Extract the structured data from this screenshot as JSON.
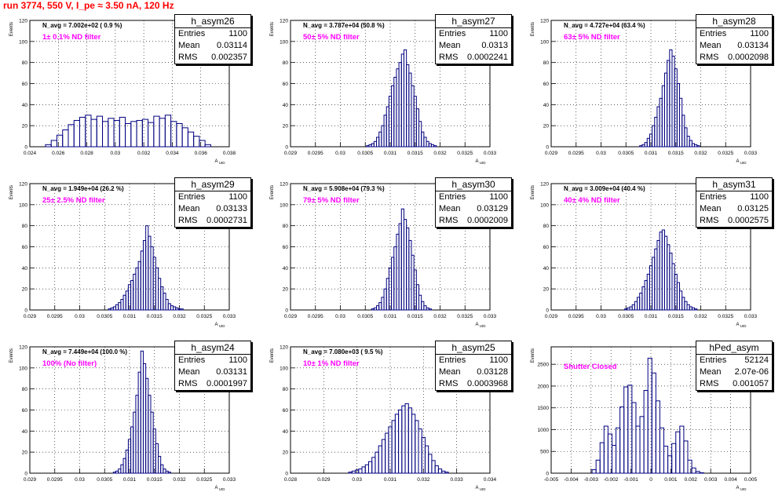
{
  "page_title": "run 3774,   550 V, I_pe ≈ 3.50 nA, 120 Hz",
  "stats_labels": {
    "entries": "Entries",
    "mean": "Mean",
    "rms": "RMS"
  },
  "ylabel": "Events",
  "xlabel": "A_UID",
  "colors": {
    "title": "#ff0000",
    "hist": "#000080",
    "annotation": "#ff00ff",
    "grid": "#000000"
  },
  "chart_data": [
    {
      "type": "histogram",
      "name": "h_asym26",
      "nlabel": "N_avg = 7.002e+02 ( 0.9 %)",
      "filter": "1± 0.1% ND filter",
      "entries": "1100",
      "mean": "0.03114",
      "rms": "0.002357",
      "xlim": [
        0.024,
        0.038
      ],
      "ylim": [
        0,
        120
      ],
      "xticks": [
        "0.024",
        "0.026",
        "0.028",
        "0.03",
        "0.032",
        "0.034",
        "0.036",
        "0.038"
      ],
      "yticks": [
        "0",
        "20",
        "40",
        "60",
        "80",
        "100",
        "120"
      ],
      "x": [
        0.0253,
        0.0257,
        0.0261,
        0.0265,
        0.0269,
        0.0273,
        0.0277,
        0.0281,
        0.0285,
        0.0289,
        0.0293,
        0.0297,
        0.0301,
        0.0305,
        0.0309,
        0.0313,
        0.0317,
        0.0321,
        0.0325,
        0.0329,
        0.0333,
        0.0337,
        0.0341,
        0.0345,
        0.0349,
        0.0353,
        0.0357,
        0.0361,
        0.0365
      ],
      "values": [
        2,
        6,
        11,
        16,
        21,
        25,
        28,
        30,
        26,
        29,
        24,
        27,
        25,
        28,
        22,
        24,
        25,
        26,
        23,
        29,
        27,
        30,
        24,
        22,
        18,
        14,
        10,
        6,
        2
      ]
    },
    {
      "type": "histogram",
      "name": "h_asym27",
      "nlabel": "N_avg = 3.787e+04 (50.8 %)",
      "filter": "50± 5% ND filter",
      "entries": "1100",
      "mean": "0.0313",
      "rms": "0.0002241",
      "xlim": [
        0.029,
        0.033
      ],
      "ylim": [
        0,
        120
      ],
      "xticks": [
        "0.029",
        "0.0295",
        "0.03",
        "0.0305",
        "0.031",
        "0.0315",
        "0.032",
        "0.0325",
        "0.033"
      ],
      "yticks": [
        "0",
        "20",
        "40",
        "60",
        "80",
        "100",
        "120"
      ],
      "x": [
        0.03055,
        0.0306,
        0.03065,
        0.0307,
        0.03075,
        0.0308,
        0.03085,
        0.0309,
        0.03095,
        0.031,
        0.03105,
        0.0311,
        0.03115,
        0.0312,
        0.03125,
        0.0313,
        0.03135,
        0.0314,
        0.03145,
        0.0315,
        0.03155,
        0.0316,
        0.03165,
        0.0317,
        0.03175,
        0.0318,
        0.03185,
        0.0319
      ],
      "values": [
        1,
        2,
        3,
        5,
        9,
        14,
        20,
        30,
        38,
        48,
        58,
        66,
        74,
        80,
        88,
        92,
        78,
        70,
        58,
        48,
        36,
        24,
        14,
        9,
        5,
        3,
        2,
        1
      ]
    },
    {
      "type": "histogram",
      "name": "h_asym28",
      "nlabel": "N_avg = 4.727e+04 (63.4 %)",
      "filter": "63± 5% ND filter",
      "entries": "1100",
      "mean": "0.03134",
      "rms": "0.0002098",
      "xlim": [
        0.029,
        0.033
      ],
      "ylim": [
        0,
        120
      ],
      "xticks": [
        "0.029",
        "0.0295",
        "0.03",
        "0.0305",
        "0.031",
        "0.0315",
        "0.032",
        "0.0325",
        "0.033"
      ],
      "yticks": [
        "0",
        "20",
        "40",
        "60",
        "80",
        "100",
        "120"
      ],
      "x": [
        0.0308,
        0.03085,
        0.0309,
        0.03095,
        0.031,
        0.03105,
        0.0311,
        0.03115,
        0.0312,
        0.03125,
        0.0313,
        0.03135,
        0.0314,
        0.03145,
        0.0315,
        0.03155,
        0.0316,
        0.03165,
        0.0317,
        0.03175,
        0.0318,
        0.03185,
        0.0319,
        0.03195
      ],
      "values": [
        1,
        2,
        4,
        8,
        12,
        20,
        28,
        38,
        46,
        58,
        70,
        82,
        92,
        86,
        74,
        60,
        46,
        30,
        18,
        10,
        6,
        3,
        2,
        1
      ]
    },
    {
      "type": "histogram",
      "name": "h_asym29",
      "nlabel": "N_avg = 1.949e+04 (26.2 %)",
      "filter": "25± 2.5% ND filter",
      "entries": "1100",
      "mean": "0.03133",
      "rms": "0.0002731",
      "xlim": [
        0.029,
        0.033
      ],
      "ylim": [
        0,
        120
      ],
      "xticks": [
        "0.029",
        "0.0295",
        "0.03",
        "0.0305",
        "0.031",
        "0.0315",
        "0.032",
        "0.0325",
        "0.033"
      ],
      "yticks": [
        "0",
        "20",
        "40",
        "60",
        "80",
        "100",
        "120"
      ],
      "x": [
        0.0306,
        0.03065,
        0.0307,
        0.03075,
        0.0308,
        0.03085,
        0.0309,
        0.03095,
        0.031,
        0.03105,
        0.0311,
        0.03115,
        0.0312,
        0.03125,
        0.0313,
        0.03135,
        0.0314,
        0.03145,
        0.0315,
        0.03155,
        0.0316,
        0.03165,
        0.0317,
        0.03175,
        0.0318,
        0.03185,
        0.0319,
        0.03195,
        0.032,
        0.03205
      ],
      "values": [
        1,
        2,
        3,
        5,
        7,
        10,
        14,
        18,
        24,
        28,
        34,
        40,
        46,
        56,
        66,
        80,
        70,
        60,
        50,
        40,
        30,
        22,
        16,
        10,
        6,
        4,
        3,
        2,
        1,
        1
      ]
    },
    {
      "type": "histogram",
      "name": "h_asym30",
      "nlabel": "N_avg = 5.908e+04 (79.3 %)",
      "filter": "79± 5% ND filter",
      "entries": "1100",
      "mean": "0.03129",
      "rms": "0.0002009",
      "xlim": [
        0.029,
        0.033
      ],
      "ylim": [
        0,
        120
      ],
      "xticks": [
        "0.029",
        "0.0295",
        "0.03",
        "0.0305",
        "0.031",
        "0.0315",
        "0.032",
        "0.0325",
        "0.033"
      ],
      "yticks": [
        "0",
        "20",
        "40",
        "60",
        "80",
        "100",
        "120"
      ],
      "x": [
        0.03065,
        0.0307,
        0.03075,
        0.0308,
        0.03085,
        0.0309,
        0.03095,
        0.031,
        0.03105,
        0.0311,
        0.03115,
        0.0312,
        0.03125,
        0.0313,
        0.03135,
        0.0314,
        0.03145,
        0.0315,
        0.03155,
        0.0316,
        0.03165,
        0.0317,
        0.03175,
        0.0318
      ],
      "values": [
        1,
        2,
        4,
        7,
        12,
        20,
        30,
        40,
        50,
        60,
        72,
        82,
        96,
        86,
        78,
        66,
        52,
        38,
        24,
        14,
        8,
        4,
        2,
        1
      ]
    },
    {
      "type": "histogram",
      "name": "h_asym31",
      "nlabel": "N_avg = 3.009e+04 (40.4 %)",
      "filter": "40± 4% ND filter",
      "entries": "1100",
      "mean": "0.03125",
      "rms": "0.0002575",
      "xlim": [
        0.029,
        0.033
      ],
      "ylim": [
        0,
        120
      ],
      "xticks": [
        "0.029",
        "0.0295",
        "0.03",
        "0.0305",
        "0.031",
        "0.0315",
        "0.032",
        "0.0325",
        "0.033"
      ],
      "yticks": [
        "0",
        "20",
        "40",
        "60",
        "80",
        "100",
        "120"
      ],
      "x": [
        0.0305,
        0.03055,
        0.0306,
        0.03065,
        0.0307,
        0.03075,
        0.0308,
        0.03085,
        0.0309,
        0.03095,
        0.031,
        0.03105,
        0.0311,
        0.03115,
        0.0312,
        0.03125,
        0.0313,
        0.03135,
        0.0314,
        0.03145,
        0.0315,
        0.03155,
        0.0316,
        0.03165,
        0.0317,
        0.03175,
        0.0318,
        0.03185,
        0.0319
      ],
      "values": [
        1,
        2,
        3,
        5,
        8,
        12,
        16,
        22,
        28,
        34,
        42,
        50,
        58,
        66,
        74,
        76,
        70,
        62,
        54,
        44,
        34,
        26,
        18,
        12,
        8,
        5,
        3,
        2,
        1
      ]
    },
    {
      "type": "histogram",
      "name": "h_asym24",
      "nlabel": "N_avg = 7.449e+04 (100.0 %)",
      "filter": "100% (No filter)",
      "entries": "1100",
      "mean": "0.03131",
      "rms": "0.0001997",
      "xlim": [
        0.029,
        0.033
      ],
      "ylim": [
        0,
        120
      ],
      "xticks": [
        "0.029",
        "0.0295",
        "0.03",
        "0.0305",
        "0.031",
        "0.0315",
        "0.032",
        "0.0325",
        "0.033"
      ],
      "yticks": [
        "0",
        "20",
        "40",
        "60",
        "80",
        "100",
        "120"
      ],
      "x": [
        0.0307,
        0.03075,
        0.0308,
        0.03085,
        0.0309,
        0.03095,
        0.031,
        0.03105,
        0.0311,
        0.03115,
        0.0312,
        0.03125,
        0.0313,
        0.03135,
        0.0314,
        0.03145,
        0.0315,
        0.03155,
        0.0316,
        0.03165,
        0.0317,
        0.03175,
        0.0318
      ],
      "values": [
        1,
        2,
        4,
        8,
        14,
        22,
        32,
        44,
        58,
        74,
        96,
        116,
        104,
        90,
        74,
        58,
        42,
        28,
        16,
        8,
        4,
        2,
        1
      ]
    },
    {
      "type": "histogram",
      "name": "h_asym25",
      "nlabel": "N_avg = 7.080e+03 ( 9.5 %)",
      "filter": "10± 1% ND filter",
      "entries": "1100",
      "mean": "0.03128",
      "rms": "0.0003968",
      "xlim": [
        0.028,
        0.034
      ],
      "ylim": [
        0,
        120
      ],
      "xticks": [
        "0.028",
        "0.029",
        "0.03",
        "0.031",
        "0.032",
        "0.033",
        "0.034"
      ],
      "yticks": [
        "0",
        "20",
        "40",
        "60",
        "80",
        "100",
        "120"
      ],
      "x": [
        0.0298,
        0.0299,
        0.03,
        0.0301,
        0.0302,
        0.0303,
        0.0304,
        0.0305,
        0.0306,
        0.0307,
        0.0308,
        0.0309,
        0.031,
        0.0311,
        0.0312,
        0.0313,
        0.0314,
        0.0315,
        0.0316,
        0.0317,
        0.0318,
        0.0319,
        0.032,
        0.0321,
        0.0322,
        0.0323,
        0.0324,
        0.0325,
        0.0326,
        0.0327
      ],
      "values": [
        1,
        2,
        3,
        4,
        6,
        8,
        11,
        15,
        20,
        26,
        32,
        38,
        44,
        50,
        56,
        60,
        64,
        66,
        62,
        56,
        50,
        42,
        34,
        26,
        18,
        12,
        7,
        4,
        2,
        1
      ]
    },
    {
      "type": "histogram",
      "name": "hPed_asym",
      "nlabel": "",
      "filter": "Shutter Closed",
      "entries": "52124",
      "mean": "2.07e-06",
      "rms": "0.001057",
      "xlim": [
        -0.005,
        0.005
      ],
      "ylim": [
        0,
        2900
      ],
      "xticks": [
        "-0.005",
        "-0.004",
        "-0.003",
        "-0.002",
        "-0.001",
        "0",
        "0.001",
        "0.002",
        "0.003",
        "0.004",
        "0.005"
      ],
      "yticks": [
        "0",
        "500",
        "1000",
        "1500",
        "2000",
        "2500"
      ],
      "x": [
        -0.00285,
        -0.00265,
        -0.00245,
        -0.00225,
        -0.00205,
        -0.00185,
        -0.00165,
        -0.00145,
        -0.00125,
        -0.00105,
        -0.00085,
        -0.00065,
        -0.00045,
        -0.00025,
        -5e-05,
        0.00015,
        0.00035,
        0.00055,
        0.00075,
        0.00095,
        0.00115,
        0.00135,
        0.00155,
        0.00175,
        0.00195,
        0.00215,
        0.00235,
        0.00255
      ],
      "values": [
        80,
        300,
        700,
        1080,
        900,
        640,
        1040,
        1520,
        1980,
        2020,
        1620,
        1080,
        1300,
        1900,
        2640,
        2300,
        1660,
        1040,
        620,
        400,
        680,
        950,
        1080,
        740,
        300,
        120,
        40,
        10
      ]
    }
  ]
}
